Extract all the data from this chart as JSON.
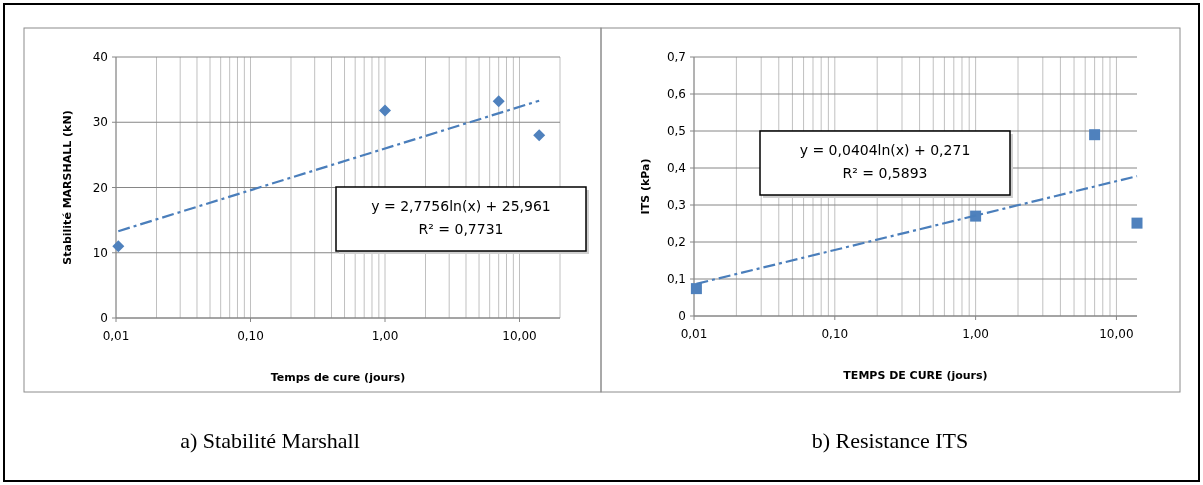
{
  "chart_data": [
    {
      "type": "scatter",
      "title": "a) Stabilité Marshall",
      "xlabel": "Temps de cure (jours)",
      "ylabel": "Stabilité MARSHALL (kN)",
      "log": "x",
      "grid": true,
      "xlim": [
        0.01,
        20
      ],
      "xticks": [
        {
          "value": 0.01,
          "label": "0,01"
        },
        {
          "value": 0.1,
          "label": "0,10"
        },
        {
          "value": 1,
          "label": "1,00"
        },
        {
          "value": 10,
          "label": "10,00"
        }
      ],
      "ylim": [
        0,
        40
      ],
      "yticks": [
        0,
        10,
        20,
        30,
        40
      ],
      "series": [
        {
          "marker": "diamond",
          "color": "#4f81bd",
          "x": [
            0.0104,
            1,
            7,
            14
          ],
          "values": [
            11.0,
            31.8,
            33.2,
            28.0
          ]
        },
        {
          "type": "line",
          "marker": "none",
          "color": "#4a7ebb",
          "line_style": "dashed",
          "x": [
            0.0104,
            14
          ],
          "values": [
            13.3,
            33.3
          ]
        }
      ],
      "annotations": [
        "y = 2,7756ln(x) + 25,961",
        "R² = 0,7731"
      ]
    },
    {
      "type": "scatter",
      "title": "b) Resistance ITS",
      "xlabel": "TEMPS DE CURE (jours)",
      "ylabel": "ITS (kPa)",
      "log": "x",
      "grid": true,
      "xlim": [
        0.01,
        14
      ],
      "xticks": [
        {
          "value": 0.01,
          "label": "0,01"
        },
        {
          "value": 0.1,
          "label": "0,10"
        },
        {
          "value": 1,
          "label": "1,00"
        },
        {
          "value": 10,
          "label": "10,00"
        }
      ],
      "ylim": [
        0,
        0.7
      ],
      "yticks": [
        0,
        {
          "value": 0.1,
          "label": "0,1"
        },
        {
          "value": 0.2,
          "label": "0,2"
        },
        {
          "value": 0.3,
          "label": "0,3"
        },
        {
          "value": 0.4,
          "label": "0,4"
        },
        {
          "value": 0.5,
          "label": "0,5"
        },
        {
          "value": 0.6,
          "label": "0,6"
        },
        {
          "value": 0.7,
          "label": "0,7"
        }
      ],
      "series": [
        {
          "marker": "square",
          "color": "#4f81bd",
          "x": [
            0.0104,
            1,
            7,
            14
          ],
          "values": [
            0.074,
            0.27,
            0.49,
            0.251
          ]
        },
        {
          "type": "line",
          "marker": "none",
          "color": "#4a7ebb",
          "line_style": "dashed",
          "x": [
            0.0104,
            14
          ],
          "values": [
            0.087,
            0.378
          ]
        }
      ],
      "annotations": [
        "y = 0,0404ln(x) + 0,271",
        "R² = 0,5893"
      ]
    }
  ]
}
